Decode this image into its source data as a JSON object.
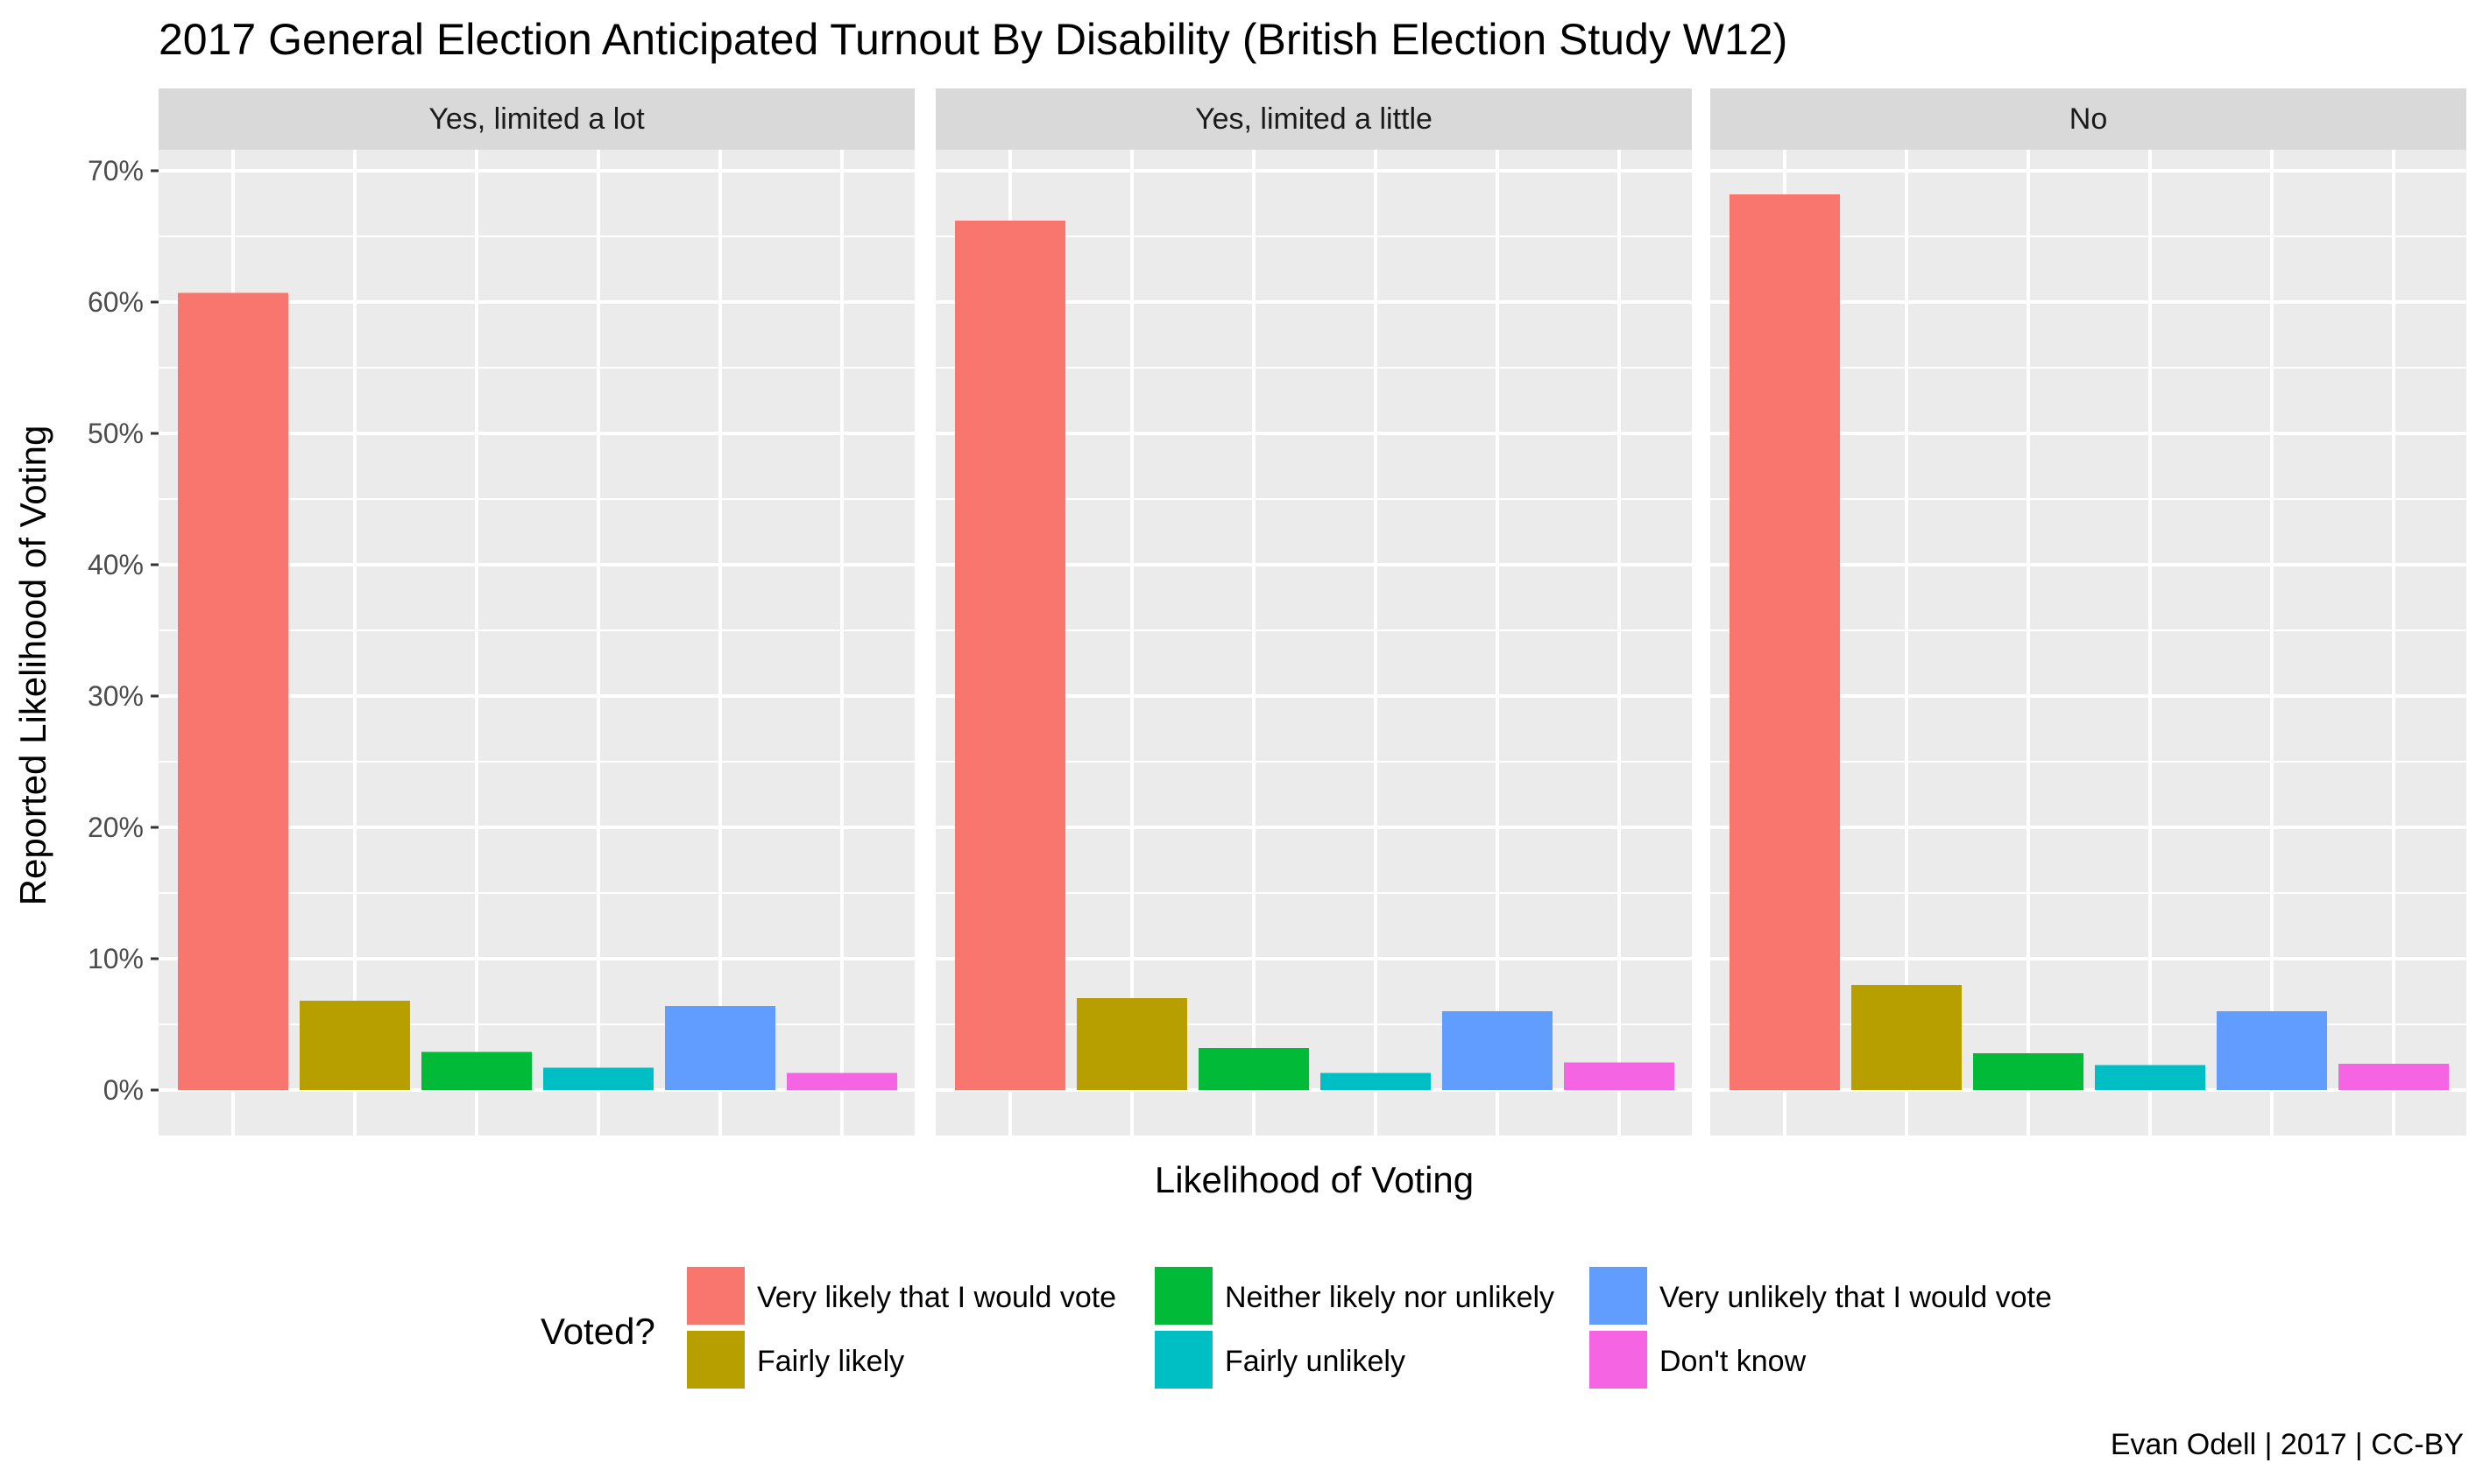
{
  "chart_data": {
    "type": "bar",
    "title": "2017 General Election Anticipated Turnout By Disability (British Election Study W12)",
    "xlabel": "Likelihood of Voting",
    "ylabel": "Reported Likelihood of Voting",
    "ylim": [
      0,
      0.72
    ],
    "yticks": [
      0,
      0.1,
      0.2,
      0.3,
      0.4,
      0.5,
      0.6,
      0.7
    ],
    "ytick_labels": [
      "0%",
      "10%",
      "20%",
      "30%",
      "40%",
      "50%",
      "60%",
      "70%"
    ],
    "grid": true,
    "legend_title": "Voted?",
    "legend_position": "bottom",
    "categories": [
      "Very likely that I would vote",
      "Fairly likely",
      "Neither likely nor unlikely",
      "Fairly unlikely",
      "Very unlikely that I would vote",
      "Don't know"
    ],
    "colors": [
      "#F8766D",
      "#B79F00",
      "#00BA38",
      "#00BFC4",
      "#619CFF",
      "#F564E3"
    ],
    "facets": [
      {
        "name": "Yes, limited a lot",
        "values": [
          0.607,
          0.068,
          0.029,
          0.017,
          0.064,
          0.013
        ]
      },
      {
        "name": "Yes, limited a little",
        "values": [
          0.662,
          0.07,
          0.032,
          0.013,
          0.06,
          0.021
        ]
      },
      {
        "name": "No",
        "values": [
          0.682,
          0.08,
          0.028,
          0.019,
          0.06,
          0.02
        ]
      }
    ]
  },
  "caption": "Evan Odell | 2017 | CC-BY"
}
